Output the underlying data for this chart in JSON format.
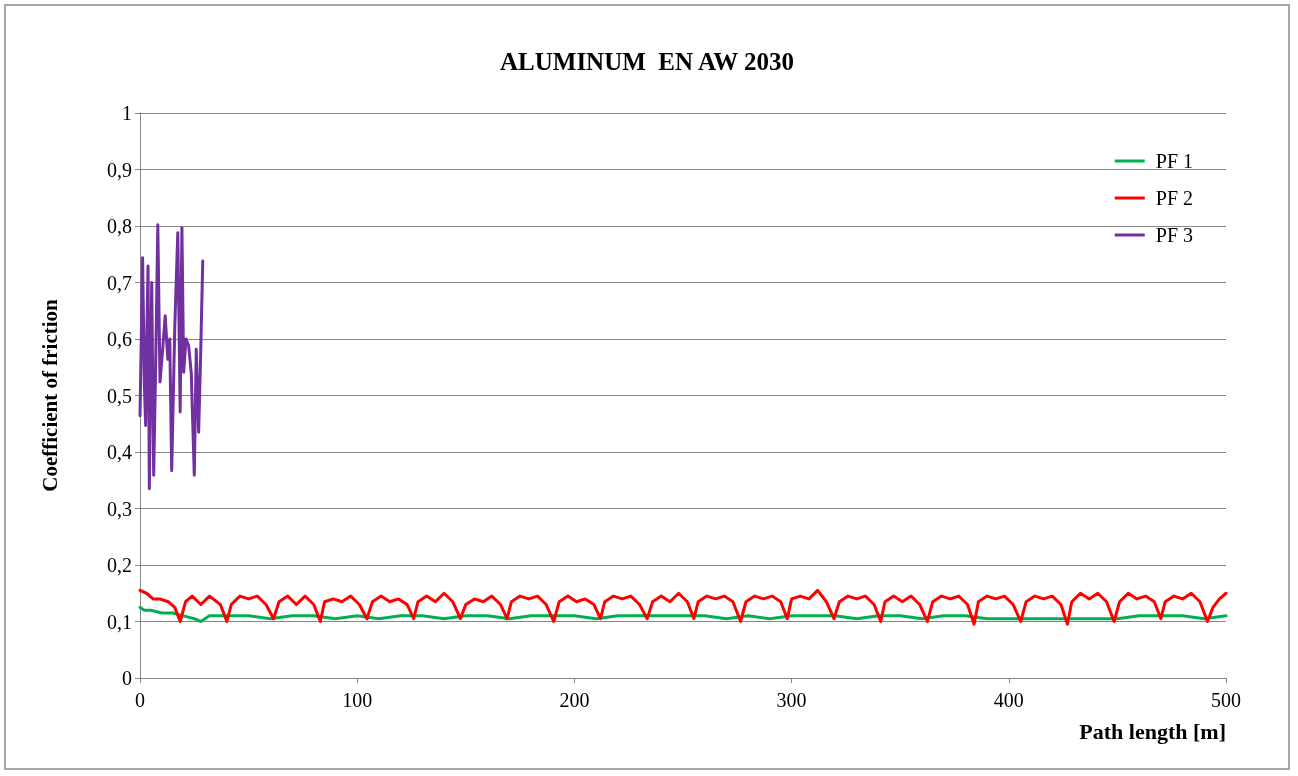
{
  "chart_data": {
    "type": "line",
    "title": "ALUMINUM  EN AW 2030",
    "xlabel": "Path length [m]",
    "ylabel": "Coefficient of friction",
    "xlim": [
      0,
      500
    ],
    "xticks": [
      0,
      100,
      200,
      300,
      400,
      500
    ],
    "ylim": [
      0,
      1
    ],
    "yticks": [
      0,
      {
        "value": 0.1,
        "label": "0,1"
      },
      {
        "value": 0.2,
        "label": "0,2"
      },
      {
        "value": 0.3,
        "label": "0,3"
      },
      {
        "value": 0.4,
        "label": "0,4"
      },
      {
        "value": 0.5,
        "label": "0,5"
      },
      {
        "value": 0.6,
        "label": "0,6"
      },
      {
        "value": 0.7,
        "label": "0,7"
      },
      {
        "value": 0.8,
        "label": "0,8"
      },
      {
        "value": 0.9,
        "label": "0,9"
      },
      1
    ],
    "grid": "y",
    "legend": "top right",
    "marker": "none",
    "line_style": "solid",
    "series": [
      {
        "name": "PF 1",
        "color": "#00b050",
        "x": [
          0,
          2,
          5,
          10,
          15,
          20,
          25,
          28,
          32,
          40,
          50,
          60,
          70,
          80,
          90,
          100,
          110,
          120,
          130,
          140,
          150,
          160,
          170,
          180,
          190,
          200,
          210,
          220,
          230,
          240,
          250,
          260,
          270,
          280,
          290,
          300,
          310,
          320,
          330,
          340,
          350,
          360,
          370,
          380,
          390,
          400,
          410,
          420,
          430,
          440,
          450,
          460,
          470,
          480,
          490,
          500
        ],
        "values": [
          0.125,
          0.12,
          0.12,
          0.115,
          0.115,
          0.11,
          0.105,
          0.1,
          0.11,
          0.11,
          0.11,
          0.105,
          0.11,
          0.11,
          0.105,
          0.11,
          0.105,
          0.11,
          0.11,
          0.105,
          0.11,
          0.11,
          0.105,
          0.11,
          0.11,
          0.11,
          0.105,
          0.11,
          0.11,
          0.11,
          0.11,
          0.11,
          0.105,
          0.11,
          0.105,
          0.11,
          0.11,
          0.11,
          0.105,
          0.11,
          0.11,
          0.105,
          0.11,
          0.11,
          0.105,
          0.105,
          0.105,
          0.105,
          0.105,
          0.105,
          0.105,
          0.11,
          0.11,
          0.11,
          0.105,
          0.11
        ]
      },
      {
        "name": "PF 2",
        "color": "#ff0000",
        "x": [
          0,
          3,
          6,
          9,
          13,
          16,
          18.5,
          21,
          24,
          28,
          32,
          37,
          40,
          42,
          46,
          50,
          54,
          58,
          61.5,
          64,
          68,
          72,
          76,
          80,
          83,
          85,
          89,
          93,
          97,
          101,
          104.5,
          107,
          111,
          115,
          119,
          123,
          126,
          128,
          132,
          136,
          140,
          144,
          147.5,
          150,
          154,
          158,
          162,
          166,
          169,
          171,
          175,
          179,
          183,
          187,
          190.5,
          193,
          197,
          201,
          205,
          209,
          212,
          214,
          218,
          222,
          226,
          230,
          233.5,
          236,
          240,
          244,
          248,
          252,
          255,
          257,
          261,
          265,
          269,
          273,
          276.5,
          279,
          283,
          287,
          291,
          295,
          298,
          300,
          304,
          308,
          312,
          316,
          319.5,
          322,
          326,
          330,
          334,
          338,
          341,
          343,
          347,
          351,
          355,
          359,
          362.5,
          365,
          369,
          373,
          377,
          381,
          384,
          386,
          390,
          394,
          398,
          402,
          405.5,
          408,
          412,
          416,
          420,
          424,
          427,
          429,
          433,
          437,
          441,
          445,
          448.5,
          451,
          455,
          459,
          463,
          467,
          470,
          472,
          476,
          480,
          484,
          488,
          491.5,
          494,
          497,
          500
        ],
        "values": [
          0.155,
          0.15,
          0.14,
          0.14,
          0.135,
          0.125,
          0.1,
          0.135,
          0.145,
          0.13,
          0.145,
          0.13,
          0.1,
          0.13,
          0.145,
          0.14,
          0.145,
          0.13,
          0.105,
          0.135,
          0.145,
          0.13,
          0.145,
          0.13,
          0.1,
          0.135,
          0.14,
          0.135,
          0.145,
          0.13,
          0.105,
          0.135,
          0.145,
          0.135,
          0.14,
          0.13,
          0.105,
          0.135,
          0.145,
          0.135,
          0.15,
          0.135,
          0.105,
          0.13,
          0.14,
          0.135,
          0.145,
          0.13,
          0.105,
          0.135,
          0.145,
          0.14,
          0.145,
          0.13,
          0.1,
          0.135,
          0.145,
          0.135,
          0.14,
          0.13,
          0.105,
          0.135,
          0.145,
          0.14,
          0.145,
          0.13,
          0.105,
          0.135,
          0.145,
          0.135,
          0.15,
          0.135,
          0.105,
          0.135,
          0.145,
          0.14,
          0.145,
          0.135,
          0.1,
          0.135,
          0.145,
          0.14,
          0.145,
          0.135,
          0.105,
          0.14,
          0.145,
          0.14,
          0.155,
          0.135,
          0.105,
          0.135,
          0.145,
          0.14,
          0.145,
          0.13,
          0.1,
          0.135,
          0.145,
          0.135,
          0.145,
          0.13,
          0.1,
          0.135,
          0.145,
          0.14,
          0.145,
          0.13,
          0.095,
          0.135,
          0.145,
          0.14,
          0.145,
          0.13,
          0.1,
          0.135,
          0.145,
          0.14,
          0.145,
          0.13,
          0.095,
          0.135,
          0.15,
          0.14,
          0.15,
          0.135,
          0.1,
          0.135,
          0.15,
          0.14,
          0.145,
          0.135,
          0.105,
          0.135,
          0.145,
          0.14,
          0.15,
          0.135,
          0.1,
          0.125,
          0.14,
          0.15
        ]
      },
      {
        "name": "PF 3",
        "color": "#7030a0",
        "x": [
          0,
          1.2,
          2,
          2.6,
          3.1,
          3.7,
          4.3,
          4.9,
          5.4,
          6.3,
          7.2,
          8.2,
          9.2,
          10.4,
          11.6,
          12.8,
          13.7,
          14.6,
          16,
          17.4,
          18.5,
          19.3,
          20.1,
          21.2,
          22.4,
          23.6,
          25,
          25.9,
          27,
          27.8,
          28.9
        ],
        "values": [
          0.464,
          0.744,
          0.52,
          0.447,
          0.6,
          0.729,
          0.335,
          0.55,
          0.7,
          0.359,
          0.55,
          0.802,
          0.524,
          0.58,
          0.641,
          0.564,
          0.6,
          0.367,
          0.62,
          0.788,
          0.471,
          0.797,
          0.541,
          0.6,
          0.588,
          0.54,
          0.359,
          0.582,
          0.435,
          0.553,
          0.738
        ]
      }
    ]
  }
}
